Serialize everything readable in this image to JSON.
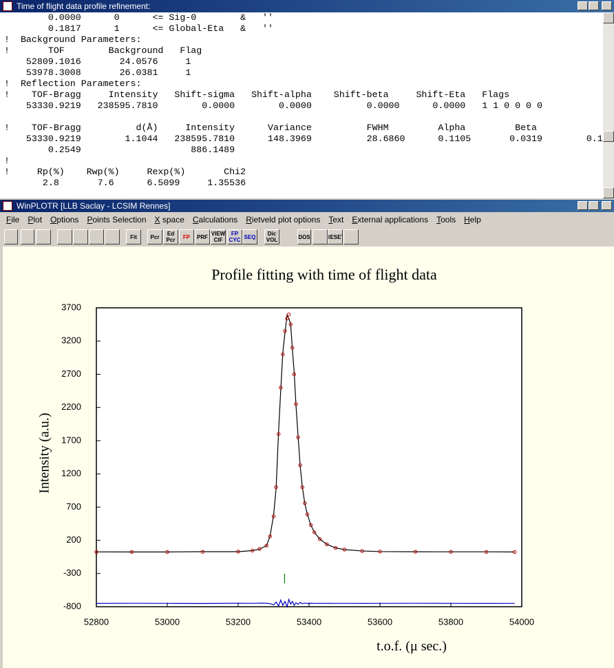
{
  "console_window": {
    "title": "Time of flight data profile refinement:",
    "blocks": [
      [
        "        0.0000      0      <= Sig-0        &   ''",
        "        0.1817      1      <= Global-Eta   &   ''",
        "!  Background Parameters:",
        "!       TOF        Background   Flag",
        "    52809.1016       24.0576     1",
        "    53978.3008       26.0381     1",
        "!  Reflection Parameters:",
        "!    TOF-Bragg     Intensity   Shift-sigma   Shift-alpha    Shift-beta     Shift-Eta   Flags",
        "    53330.9219   238595.7810        0.0000        0.0000          0.0000      0.0000   1 1 0 0 0 0"
      ],
      [
        "!    TOF-Bragg          d(Å)     Intensity      Variance          FWHM         Alpha         Beta",
        "    53330.9219        1.1044   238595.7810      148.3969          28.6860      0.1105       0.0319        0.1",
        "        0.2549                    886.1489",
        "!",
        "!     Rp(%)    Rwp(%)     Rexp(%)       Chi2",
        "       2.8       7.6      6.5099     1.35536"
      ]
    ]
  },
  "plot_window": {
    "title": "WinPLOTR [LLB Saclay - LCSIM Rennes]",
    "menu": [
      "File",
      "Plot",
      "Options",
      "Points Selection",
      "X space",
      "Calculations",
      "Rietveld plot options",
      "Text",
      "External applications",
      "Tools",
      "Help"
    ],
    "toolbar": [
      "Fit",
      "Pcr",
      "Ed Pcr",
      "FP",
      "PRF",
      "VIEW CIF",
      "FP CYC",
      "SEQ",
      "Dic VOL",
      "DOS",
      "RESET"
    ]
  },
  "chart_data": {
    "type": "line",
    "title": "Profile fitting with time of flight data",
    "x_label": "t.o.f. (μ sec.)",
    "y_label": "Intensity (a.u.)",
    "x": [
      52800,
      52900,
      53000,
      53100,
      53200,
      53240,
      53260,
      53280,
      53290,
      53300,
      53307,
      53314,
      53320,
      53326,
      53332,
      53338,
      53343,
      53348,
      53353,
      53358,
      53363,
      53369,
      53375,
      53381,
      53388,
      53395,
      53405,
      53415,
      53430,
      53450,
      53475,
      53500,
      53550,
      53600,
      53700,
      53800,
      53900,
      53980
    ],
    "series": [
      {
        "color": "#c00000",
        "marker": "circle",
        "values": [
          24,
          25,
          24,
          26,
          30,
          45,
          70,
          120,
          260,
          560,
          1000,
          1800,
          2500,
          3000,
          3350,
          3540,
          3600,
          3450,
          3100,
          2700,
          2250,
          1750,
          1330,
          1000,
          760,
          590,
          430,
          320,
          220,
          140,
          85,
          60,
          38,
          30,
          28,
          26,
          25,
          24
        ]
      },
      {
        "color": "#000000",
        "values": [
          25,
          24,
          24,
          28,
          28,
          45,
          66,
          118,
          265,
          580,
          980,
          1840,
          2450,
          3030,
          3320,
          3590,
          3540,
          3460,
          3070,
          2730,
          2240,
          1765,
          1315,
          1005,
          755,
          592,
          428,
          320,
          221,
          139,
          85,
          60,
          39,
          30,
          27,
          26,
          26,
          24
        ]
      },
      {
        "color": "#0000c0",
        "values": [
          -751,
          -749,
          -750,
          -752,
          -748,
          -750,
          -746,
          -748,
          -755,
          -770,
          -730,
          -790,
          -700,
          -780,
          -720,
          -800,
          -690,
          -760,
          -720,
          -780,
          -740,
          -765,
          -735,
          -755,
          -745,
          -752,
          -748,
          -750,
          -751,
          -749,
          -750,
          -750,
          -751,
          -750,
          -749,
          -750,
          -751,
          -750
        ]
      }
    ],
    "bragg_positions": [
      53330.9219
    ],
    "bragg_color": "#008000",
    "xlim": [
      52800,
      54000
    ],
    "ylim": [
      -800,
      3700
    ],
    "xticks": [
      52800,
      53000,
      53200,
      53400,
      53600,
      53800,
      54000
    ],
    "yticks": [
      3700,
      3200,
      2700,
      2200,
      1700,
      1200,
      700,
      200,
      -300,
      -800
    ]
  }
}
